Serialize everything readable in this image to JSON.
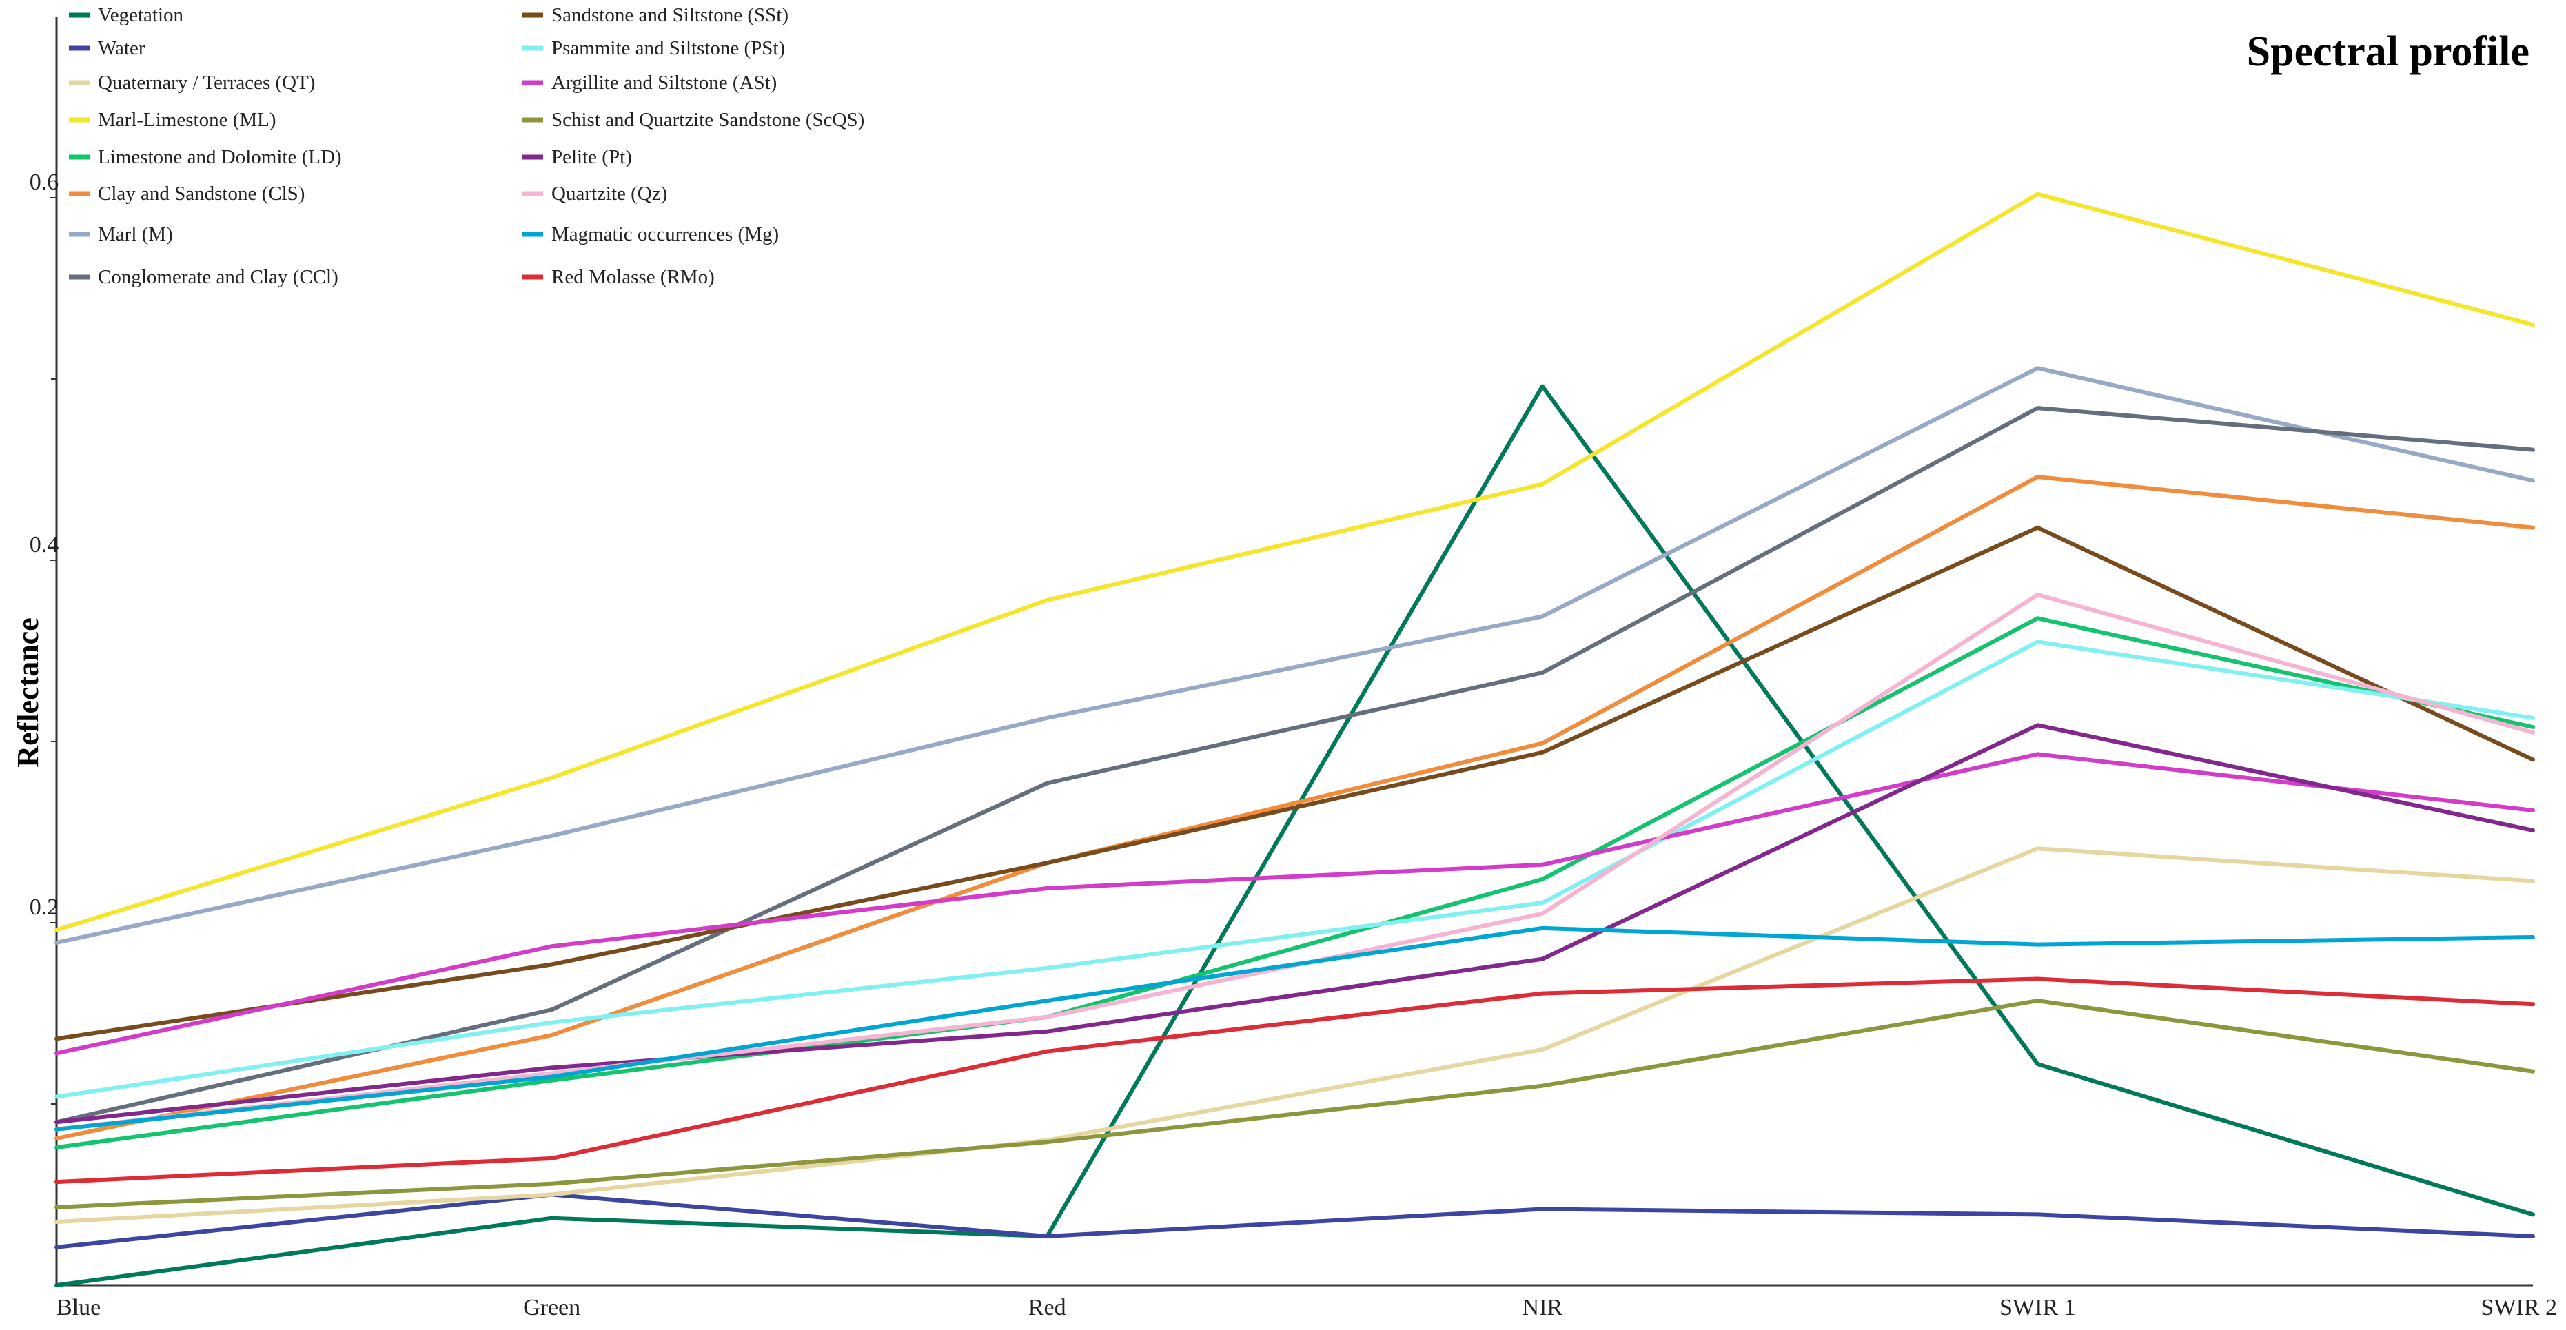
{
  "chart_data": {
    "type": "line",
    "title": "Spectral profile",
    "xlabel": "",
    "ylabel": "Reflectance",
    "categories": [
      "Blue",
      "Green",
      "Red",
      "NIR",
      "SWIR 1",
      "SWIR 2"
    ],
    "ylim": [
      0,
      0.7
    ],
    "yticks": [
      0.2,
      0.4,
      0.6
    ],
    "ytick_labels": [
      "0.2",
      "0.4",
      "0.6"
    ],
    "legend_position": "top-left",
    "series": [
      {
        "name": "Vegetation",
        "color": "#00785a",
        "values": [
          0.0,
          0.037,
          0.027,
          0.496,
          0.122,
          0.039
        ]
      },
      {
        "name": "Water",
        "color": "#3c46a0",
        "values": [
          0.021,
          0.05,
          0.027,
          0.042,
          0.039,
          0.027
        ]
      },
      {
        "name": "Quaternary / Terraces (QT)",
        "color": "#e6d7a0",
        "values": [
          0.035,
          0.05,
          0.08,
          0.13,
          0.241,
          0.223
        ]
      },
      {
        "name": "Marl-Limestone (ML)",
        "color": "#f5e62d",
        "values": [
          0.196,
          0.28,
          0.378,
          0.442,
          0.602,
          0.53
        ]
      },
      {
        "name": "Limestone and Dolomite (LD)",
        "color": "#14c36e",
        "values": [
          0.076,
          0.113,
          0.148,
          0.224,
          0.368,
          0.308
        ]
      },
      {
        "name": "Clay and Sandstone (ClS)",
        "color": "#f08c3c",
        "values": [
          0.081,
          0.138,
          0.233,
          0.299,
          0.446,
          0.418
        ]
      },
      {
        "name": "Marl (M)",
        "color": "#96aac8",
        "values": [
          0.189,
          0.248,
          0.313,
          0.369,
          0.506,
          0.444
        ]
      },
      {
        "name": "Conglomerate and Clay (CCl)",
        "color": "#646e7d",
        "values": [
          0.09,
          0.152,
          0.277,
          0.338,
          0.484,
          0.461
        ]
      },
      {
        "name": "Sandstone and Siltstone (SSt)",
        "color": "#784b1e",
        "values": [
          0.136,
          0.177,
          0.233,
          0.294,
          0.418,
          0.29
        ]
      },
      {
        "name": "Psammite and Siltstone (PSt)",
        "color": "#82f0f0",
        "values": [
          0.104,
          0.145,
          0.175,
          0.211,
          0.355,
          0.313
        ]
      },
      {
        "name": "Argillite and Siltstone (ASt)",
        "color": "#d23cc8",
        "values": [
          0.128,
          0.187,
          0.219,
          0.232,
          0.293,
          0.262
        ]
      },
      {
        "name": "Schist and Quartzite Sandstone (ScQS)",
        "color": "#8c963c",
        "values": [
          0.043,
          0.056,
          0.079,
          0.11,
          0.157,
          0.118
        ]
      },
      {
        "name": "Pelite (Pt)",
        "color": "#82288c",
        "values": [
          0.09,
          0.12,
          0.14,
          0.18,
          0.309,
          0.251
        ]
      },
      {
        "name": "Quartzite (Qz)",
        "color": "#f5b4d2",
        "values": [
          0.086,
          0.117,
          0.148,
          0.205,
          0.381,
          0.305
        ]
      },
      {
        "name": "Magmatic occurrences (Mg)",
        "color": "#00a5d2",
        "values": [
          0.086,
          0.115,
          0.157,
          0.197,
          0.188,
          0.192
        ]
      },
      {
        "name": "Red Molasse (RMo)",
        "color": "#dc2d37",
        "values": [
          0.057,
          0.07,
          0.129,
          0.161,
          0.169,
          0.155
        ]
      }
    ]
  }
}
